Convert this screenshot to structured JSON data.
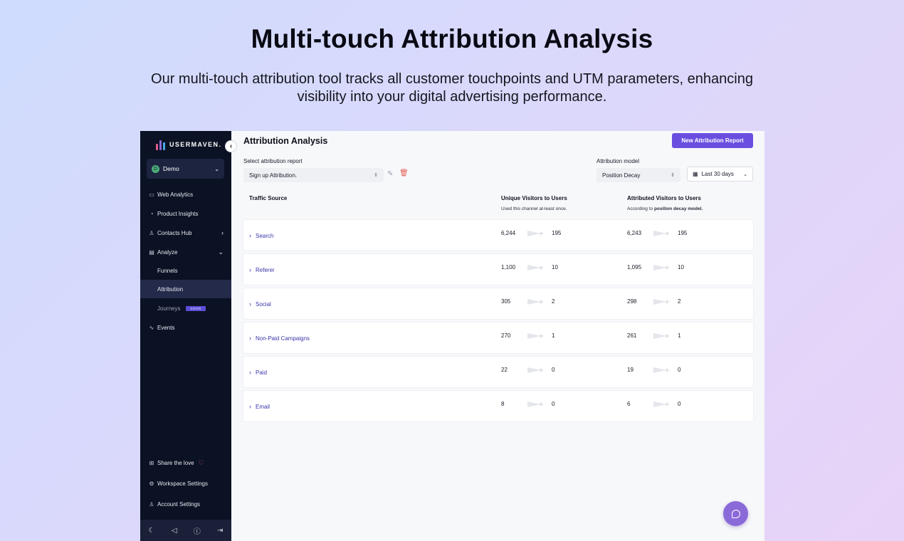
{
  "hero": {
    "title": "Multi-touch Attribution Analysis",
    "subtitle": "Our multi-touch attribution tool tracks all customer touchpoints and UTM parameters, enhancing visibility into your digital advertising performance."
  },
  "sidebar": {
    "logo_text": "USERMAVEN.",
    "workspace": {
      "initial": "D",
      "name": "Demo"
    },
    "items": [
      {
        "label": "Web Analytics",
        "icon": "browser-icon"
      },
      {
        "label": "Product Insights",
        "icon": "pie-chart-icon"
      },
      {
        "label": "Contacts Hub",
        "icon": "user-icon"
      },
      {
        "label": "Analyze",
        "icon": "bar-chart-icon"
      },
      {
        "label": "Funnels"
      },
      {
        "label": "Attribution"
      },
      {
        "label": "Journeys",
        "badge": "SOON"
      },
      {
        "label": "Events",
        "icon": "activity-icon"
      }
    ],
    "footer_items": [
      {
        "label": "Share the love",
        "icon": "gift-icon"
      },
      {
        "label": "Workspace Settings",
        "icon": "gear-icon"
      },
      {
        "label": "Account Settings",
        "icon": "user-settings-icon"
      }
    ],
    "bottom_icons": [
      "moon-icon",
      "megaphone-icon",
      "help-icon",
      "logout-icon"
    ]
  },
  "main": {
    "title": "Attribution Analysis",
    "new_report_label": "New Attribution Report",
    "report_label": "Select attribution report",
    "report_value": "Sign up Attribution.",
    "model_label": "Attribution model",
    "model_value": "Position Decay",
    "date_range": "Last 30 days",
    "columns": {
      "source": "Traffic Source",
      "unique": "Unique Visitors to Users",
      "unique_sub": "Used this channel at-least once.",
      "attributed": "Attributed Visitors to Users",
      "attributed_sub_prefix": "According to ",
      "attributed_sub_bold": "position decay model."
    },
    "rows": [
      {
        "source": "Search",
        "uv": "6,244",
        "uu": "195",
        "av": "6,243",
        "au": "195"
      },
      {
        "source": "Referer",
        "uv": "1,100",
        "uu": "10",
        "av": "1,095",
        "au": "10"
      },
      {
        "source": "Social",
        "uv": "305",
        "uu": "2",
        "av": "298",
        "au": "2"
      },
      {
        "source": "Non-Paid Campaigns",
        "uv": "270",
        "uu": "1",
        "av": "261",
        "au": "1"
      },
      {
        "source": "Paid",
        "uv": "22",
        "uu": "0",
        "av": "19",
        "au": "0"
      },
      {
        "source": "Email",
        "uv": "8",
        "uu": "0",
        "av": "6",
        "au": "0"
      }
    ]
  },
  "colors": {
    "accent": "#6a4ee0",
    "sidebar_bg": "#0b1224",
    "chat": "#8a6ad8"
  }
}
